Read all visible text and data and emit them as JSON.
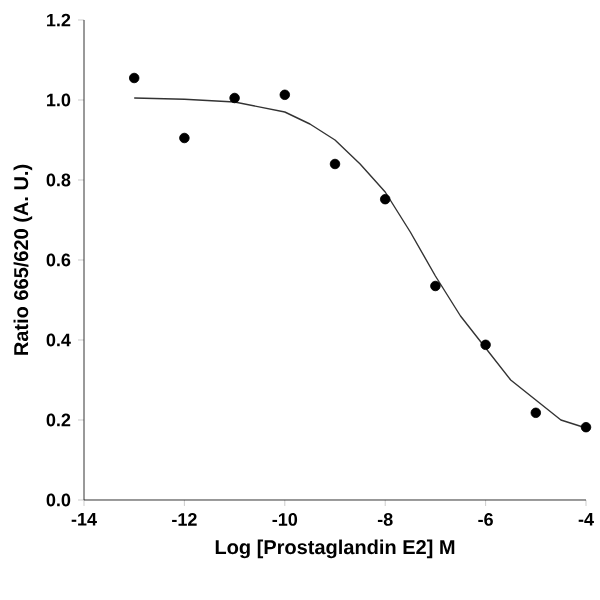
{
  "chart_data": {
    "type": "scatter",
    "xlabel": "Log [Prostaglandin E2] M",
    "ylabel": "Ratio 665/620 (A. U.)",
    "xlim": [
      -14,
      -4
    ],
    "xticks": [
      -14,
      -12,
      -10,
      -8,
      -6,
      -4
    ],
    "ylim": [
      0,
      1.2
    ],
    "yticks": [
      {
        "value": 0,
        "label": "0.0"
      },
      0.2,
      0.4,
      0.6,
      0.8,
      {
        "value": 1,
        "label": "1.0"
      },
      1.2
    ],
    "series": [
      {
        "color": "#000000",
        "marker": "circle",
        "x": [
          -13,
          -12,
          -11,
          -10,
          -9,
          -8,
          -7,
          -6,
          -5,
          -4
        ],
        "values": [
          1.055,
          0.905,
          1.005,
          1.013,
          0.84,
          0.752,
          0.535,
          0.388,
          0.218,
          0.182
        ]
      },
      {
        "type": "line",
        "color": "#333333",
        "line_style": "solid",
        "x": [
          -13,
          -12,
          -11,
          -10,
          -9.5,
          -9,
          -8.5,
          -8,
          -7.5,
          -7,
          -6.5,
          -6,
          -5.5,
          -5,
          -4.5,
          -4
        ],
        "values": [
          1.005,
          1.002,
          0.995,
          0.97,
          0.94,
          0.9,
          0.84,
          0.77,
          0.67,
          0.56,
          0.46,
          0.38,
          0.3,
          0.25,
          0.2,
          0.18
        ]
      }
    ]
  }
}
